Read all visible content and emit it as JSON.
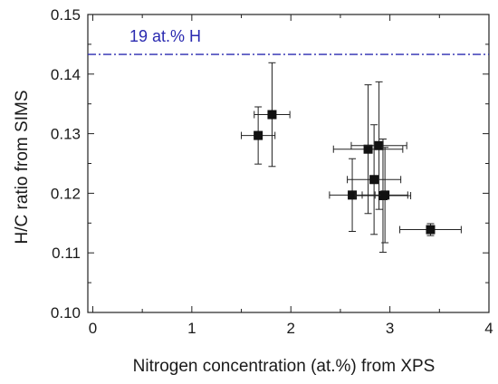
{
  "chart_data": {
    "type": "scatter",
    "title": "",
    "xlabel": "Nitrogen concentration (at.%) from XPS",
    "ylabel": "H/C ratio from SIMS",
    "xlim": [
      -0.05,
      4.0
    ],
    "ylim": [
      0.1,
      0.15
    ],
    "x_ticks": [
      0,
      1,
      2,
      3,
      4
    ],
    "x_tick_labels": [
      "0",
      "1",
      "2",
      "3",
      "4"
    ],
    "y_ticks": [
      0.1,
      0.11,
      0.12,
      0.13,
      0.14,
      0.15
    ],
    "y_tick_labels": [
      "0.10",
      "0.11",
      "0.12",
      "0.13",
      "0.14",
      "0.15"
    ],
    "grid": false,
    "reference_line": {
      "y": 0.1433,
      "label": "19 at.% H",
      "style": "dash-dot",
      "color": "#2a2ab0"
    },
    "points": [
      {
        "x": 1.67,
        "y": 0.1297,
        "xerr": 0.17,
        "yerr": 0.0048
      },
      {
        "x": 1.81,
        "y": 0.1332,
        "xerr": 0.18,
        "yerr": 0.0087
      },
      {
        "x": 2.62,
        "y": 0.1197,
        "xerr": 0.23,
        "yerr": 0.0061
      },
      {
        "x": 2.78,
        "y": 0.1274,
        "xerr": 0.35,
        "yerr": 0.0108
      },
      {
        "x": 2.84,
        "y": 0.1223,
        "xerr": 0.27,
        "yerr": 0.0092
      },
      {
        "x": 2.89,
        "y": 0.128,
        "xerr": 0.28,
        "yerr": 0.0107
      },
      {
        "x": 2.93,
        "y": 0.1196,
        "xerr": 0.28,
        "yerr": 0.0095
      },
      {
        "x": 2.95,
        "y": 0.1197,
        "xerr": 0.23,
        "yerr": 0.008
      },
      {
        "x": 3.41,
        "y": 0.1139,
        "xerr": 0.31,
        "yerr": 0.001
      }
    ],
    "marker": {
      "shape": "square",
      "color": "#111111"
    },
    "errorbar_color": "#222222"
  }
}
